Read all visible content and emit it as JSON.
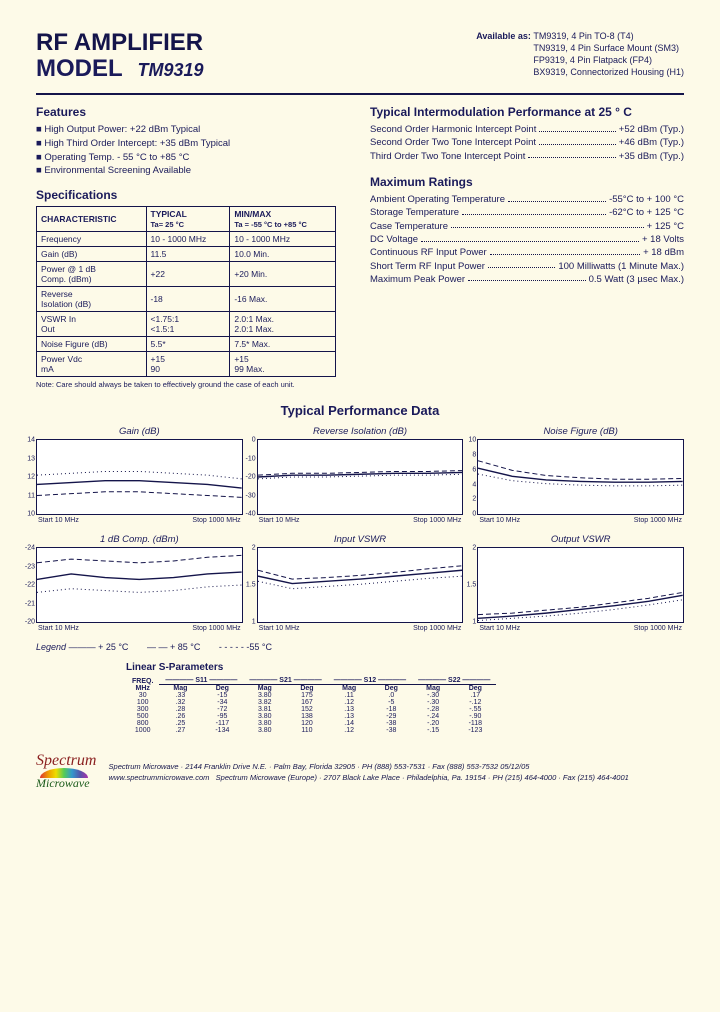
{
  "header": {
    "title_line1": "RF AMPLIFIER",
    "title_line2": "MODEL",
    "model_number": "TM9319",
    "available_label": "Available as:",
    "available": [
      "TM9319, 4 Pin TO-8 (T4)",
      "TN9319, 4 Pin Surface Mount (SM3)",
      "FP9319, 4 Pin Flatpack (FP4)",
      "BX9319, Connectorized Housing (H1)"
    ]
  },
  "features": {
    "heading": "Features",
    "items": [
      "High Output Power: +22 dBm Typical",
      "High Third Order Intercept: +35 dBm Typical",
      "Operating Temp. - 55 °C to +85 °C",
      " Environmental Screening Available"
    ]
  },
  "specs": {
    "heading": "Specifications",
    "cols": [
      "CHARACTERISTIC",
      "TYPICAL",
      "MIN/MAX"
    ],
    "subcols": [
      "",
      "Ta= 25 °C",
      "Ta = -55 °C to +85 °C"
    ],
    "rows": [
      [
        "Frequency",
        "10 - 1000 MHz",
        "10 - 1000 MHz"
      ],
      [
        "Gain (dB)",
        "11.5",
        "10.0 Min."
      ],
      [
        "Power @ 1 dB\nComp. (dBm)",
        "+22",
        "+20 Min."
      ],
      [
        "Reverse\nIsolation (dB)",
        "-18",
        "-16  Max."
      ],
      [
        "VSWR       In\n               Out",
        "<1.75:1\n<1.5:1",
        "2.0:1 Max.\n2.0:1 Max."
      ],
      [
        "Noise Figure (dB)",
        "5.5*",
        "7.5* Max."
      ],
      [
        "Power      Vdc\n               mA",
        "+15\n90",
        "+15\n99 Max."
      ]
    ],
    "note": "Note: Care should always be taken to effectively ground the case of each unit."
  },
  "intermod": {
    "heading": "Typical Intermodulation Performance at 25 ° C",
    "lines": [
      {
        "k": "Second Order Harmonic Intercept Point",
        "v": "+52 dBm (Typ.)"
      },
      {
        "k": "Second Order Two Tone Intercept Point",
        "v": "+46 dBm (Typ.)"
      },
      {
        "k": "Third Order Two Tone Intercept Point",
        "v": "+35 dBm (Typ.)"
      }
    ]
  },
  "maxratings": {
    "heading": "Maximum Ratings",
    "lines": [
      {
        "k": "Ambient Operating Temperature",
        "v": "-55°C to + 100 °C"
      },
      {
        "k": "Storage Temperature",
        "v": "-62°C to + 125 °C"
      },
      {
        "k": "Case Temperature",
        "v": "+ 125 °C"
      },
      {
        "k": "DC Voltage",
        "v": "+ 18 Volts"
      },
      {
        "k": "Continuous RF Input Power",
        "v": "+ 18 dBm"
      },
      {
        "k": "Short Term RF Input Power",
        "v": "100 Milliwatts (1 Minute Max.)"
      },
      {
        "k": " Maximum Peak Power",
        "v": "0.5 Watt (3 µsec Max.)"
      }
    ]
  },
  "perf_title": "Typical Performance Data",
  "charts": [
    {
      "title": "Gain (dB)",
      "ylim": [
        10,
        14
      ],
      "yticks": [
        10,
        11,
        12,
        13,
        14
      ],
      "xstart": "Start  10  MHz",
      "xstop": "Stop  1000 MHz",
      "series": {
        "solid": [
          11.6,
          11.7,
          11.8,
          11.8,
          11.7,
          11.6,
          11.4
        ],
        "dash": [
          11.0,
          11.1,
          11.2,
          11.2,
          11.1,
          11.0,
          10.9
        ],
        "dot": [
          12.1,
          12.2,
          12.3,
          12.3,
          12.2,
          12.1,
          11.9
        ]
      }
    },
    {
      "title": "Reverse Isolation (dB)",
      "ylim": [
        -40,
        0
      ],
      "yticks": [
        -40,
        -30,
        -20,
        -10,
        0
      ],
      "xstart": "Start  10  MHz",
      "xstop": "Stop  1000 MHz",
      "series": {
        "solid": [
          -20,
          -19,
          -19,
          -18.5,
          -18,
          -18,
          -17.5
        ],
        "dash": [
          -19,
          -18,
          -18,
          -17.5,
          -17,
          -17,
          -16.5
        ],
        "dot": [
          -21,
          -20,
          -20,
          -19.5,
          -19,
          -19,
          -18.5
        ]
      }
    },
    {
      "title": "Noise Figure (dB)",
      "ylim": [
        0,
        10
      ],
      "yticks": [
        0,
        2,
        4,
        6,
        8,
        10
      ],
      "xstart": "Start  10  MHz",
      "xstop": "Stop  1000 MHz",
      "series": {
        "solid": [
          6.2,
          5.1,
          4.6,
          4.4,
          4.3,
          4.3,
          4.4
        ],
        "dash": [
          7.2,
          5.9,
          5.2,
          4.9,
          4.7,
          4.7,
          4.8
        ],
        "dot": [
          5.4,
          4.5,
          4.1,
          3.9,
          3.8,
          3.8,
          3.9
        ]
      }
    },
    {
      "title": "1 dB Comp. (dBm)",
      "ylim": [
        -20,
        -24
      ],
      "yticks": [
        -24,
        -23,
        -22,
        -21,
        -20
      ],
      "xstart": "Start  10  MHz",
      "xstop": "Stop  1000 MHz",
      "series": {
        "solid": [
          -22.3,
          -22.6,
          -22.4,
          -22.3,
          -22.4,
          -22.6,
          -22.7
        ],
        "dash": [
          -23.2,
          -23.4,
          -23.3,
          -23.2,
          -23.3,
          -23.5,
          -23.6
        ],
        "dot": [
          -21.6,
          -21.8,
          -21.7,
          -21.6,
          -21.7,
          -21.9,
          -22.0
        ]
      }
    },
    {
      "title": "Input VSWR",
      "ylim": [
        1.0,
        2.0
      ],
      "yticks": [
        1.0,
        1.5,
        2.0
      ],
      "xstart": "Start  10  MHz",
      "xstop": "Stop  1000 MHz",
      "series": {
        "solid": [
          1.62,
          1.52,
          1.55,
          1.58,
          1.62,
          1.66,
          1.7
        ],
        "dash": [
          1.7,
          1.58,
          1.6,
          1.63,
          1.67,
          1.72,
          1.76
        ],
        "dot": [
          1.55,
          1.45,
          1.48,
          1.51,
          1.55,
          1.59,
          1.62
        ]
      }
    },
    {
      "title": "Output VSWR",
      "ylim": [
        1.0,
        2.0
      ],
      "yticks": [
        1.0,
        1.5,
        2.0
      ],
      "xstart": "Start  10  MHz",
      "xstop": "Stop  1000 MHz",
      "series": {
        "solid": [
          1.05,
          1.08,
          1.12,
          1.17,
          1.22,
          1.28,
          1.36
        ],
        "dash": [
          1.1,
          1.12,
          1.16,
          1.2,
          1.26,
          1.32,
          1.4
        ],
        "dot": [
          1.02,
          1.05,
          1.08,
          1.12,
          1.17,
          1.23,
          1.3
        ]
      }
    }
  ],
  "legend": {
    "label": "Legend",
    "items": [
      "———  + 25 °C",
      "— —  + 85 °C",
      "- - - - -  -55 °C"
    ]
  },
  "sparams": {
    "title": "Linear S-Parameters",
    "freq_label": "FREQ.\nMHz",
    "groups": [
      "S11",
      "S21",
      "S12",
      "S22"
    ],
    "sub": [
      "Mag",
      "Deg"
    ],
    "rows": [
      [
        "30",
        ".33",
        "-15",
        "3.80",
        "175",
        ".11",
        ".0",
        "-.30",
        ".17"
      ],
      [
        "100",
        ".32",
        "-34",
        "3.82",
        "167",
        ".12",
        "-5",
        "-.30",
        "-.12"
      ],
      [
        "300",
        ".28",
        "-72",
        "3.81",
        "152",
        ".13",
        "-18",
        "-.28",
        "-.55"
      ],
      [
        "500",
        ".26",
        "-95",
        "3.80",
        "138",
        ".13",
        "-29",
        "-.24",
        "-.90"
      ],
      [
        "800",
        ".25",
        "-117",
        "3.80",
        "120",
        ".14",
        "-38",
        "-.20",
        "-118"
      ],
      [
        "1000",
        ".27",
        "-134",
        "3.80",
        "110",
        ".12",
        "-38",
        "-.15",
        "-123"
      ]
    ]
  },
  "footer": {
    "logo1": "Spectrum",
    "logo2": "Microwave",
    "line1": "Spectrum Microwave · 2144 Franklin Drive N.E. · Palm Bay, Florida 32905 · PH (888) 553-7531 · Fax (888) 553-7532    05/12/05",
    "url": "www.spectrummicrowave.com",
    "line2": "Spectrum Microwave (Europe) · 2707 Black Lake Place · Philadelphia, Pa. 19154 · PH (215) 464-4000 · Fax (215) 464-4001"
  },
  "colors": {
    "page_bg": "#fdfae8",
    "text": "#14144a",
    "chart_bg": "#ffffff"
  }
}
